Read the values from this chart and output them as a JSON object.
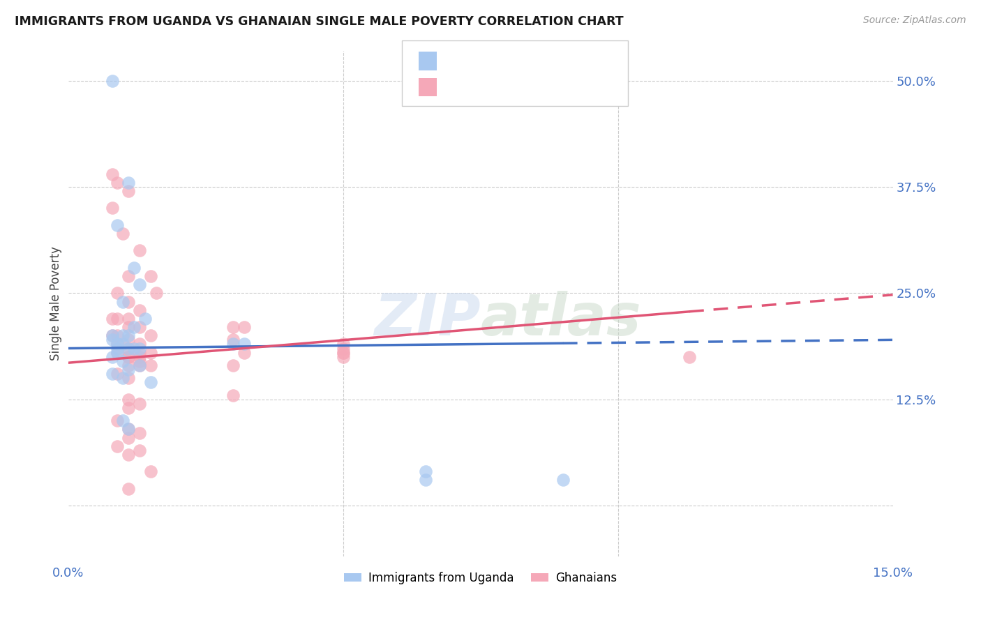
{
  "title": "IMMIGRANTS FROM UGANDA VS GHANAIAN SINGLE MALE POVERTY CORRELATION CHART",
  "source": "Source: ZipAtlas.com",
  "ylabel": "Single Male Poverty",
  "yticks": [
    0.0,
    0.125,
    0.25,
    0.375,
    0.5
  ],
  "ytick_labels": [
    "",
    "12.5%",
    "25.0%",
    "37.5%",
    "50.0%"
  ],
  "xlim": [
    0.0,
    0.15
  ],
  "ylim": [
    -0.06,
    0.535
  ],
  "color_blue": "#a8c8f0",
  "color_pink": "#f5a8b8",
  "color_blue_line": "#4472c4",
  "color_pink_line": "#e05575",
  "color_axis_label": "#4472c4",
  "uganda_x": [
    0.008,
    0.011,
    0.009,
    0.012,
    0.013,
    0.01,
    0.014,
    0.012,
    0.008,
    0.01,
    0.011,
    0.009,
    0.01,
    0.008,
    0.011,
    0.009,
    0.013,
    0.012,
    0.009,
    0.008,
    0.01,
    0.013,
    0.011,
    0.008,
    0.01,
    0.015,
    0.03,
    0.032,
    0.01,
    0.011,
    0.065,
    0.09,
    0.065
  ],
  "uganda_y": [
    0.5,
    0.38,
    0.33,
    0.28,
    0.26,
    0.24,
    0.22,
    0.21,
    0.2,
    0.2,
    0.2,
    0.19,
    0.19,
    0.195,
    0.185,
    0.185,
    0.185,
    0.185,
    0.18,
    0.175,
    0.17,
    0.165,
    0.16,
    0.155,
    0.15,
    0.145,
    0.19,
    0.19,
    0.1,
    0.09,
    0.03,
    0.03,
    0.04
  ],
  "ghana_x": [
    0.008,
    0.009,
    0.011,
    0.008,
    0.01,
    0.013,
    0.011,
    0.015,
    0.016,
    0.009,
    0.011,
    0.013,
    0.008,
    0.009,
    0.011,
    0.013,
    0.011,
    0.009,
    0.008,
    0.015,
    0.011,
    0.009,
    0.013,
    0.011,
    0.015,
    0.013,
    0.009,
    0.03,
    0.03,
    0.032,
    0.032,
    0.05,
    0.05,
    0.011,
    0.013,
    0.011,
    0.013,
    0.015,
    0.011,
    0.013,
    0.009,
    0.011,
    0.03,
    0.05,
    0.05,
    0.03,
    0.05,
    0.011,
    0.013,
    0.011,
    0.009,
    0.011,
    0.013,
    0.011,
    0.009,
    0.013,
    0.011,
    0.113,
    0.015,
    0.011
  ],
  "ghana_y": [
    0.39,
    0.38,
    0.37,
    0.35,
    0.32,
    0.3,
    0.27,
    0.27,
    0.25,
    0.25,
    0.24,
    0.23,
    0.22,
    0.22,
    0.22,
    0.21,
    0.21,
    0.2,
    0.2,
    0.2,
    0.195,
    0.19,
    0.19,
    0.185,
    0.18,
    0.18,
    0.18,
    0.195,
    0.21,
    0.21,
    0.18,
    0.18,
    0.18,
    0.175,
    0.175,
    0.175,
    0.17,
    0.165,
    0.165,
    0.165,
    0.155,
    0.15,
    0.165,
    0.175,
    0.185,
    0.13,
    0.19,
    0.125,
    0.12,
    0.115,
    0.1,
    0.09,
    0.085,
    0.08,
    0.07,
    0.065,
    0.06,
    0.175,
    0.04,
    0.02
  ],
  "uganda_line_start_x": 0.0,
  "uganda_line_end_x": 0.15,
  "uganda_line_y_at_0": 0.185,
  "uganda_line_y_at_15": 0.195,
  "ghana_line_start_x": 0.0,
  "ghana_line_end_solid_x": 0.113,
  "ghana_line_end_x": 0.15,
  "ghana_line_y_at_0": 0.168,
  "ghana_line_y_at_15": 0.248
}
